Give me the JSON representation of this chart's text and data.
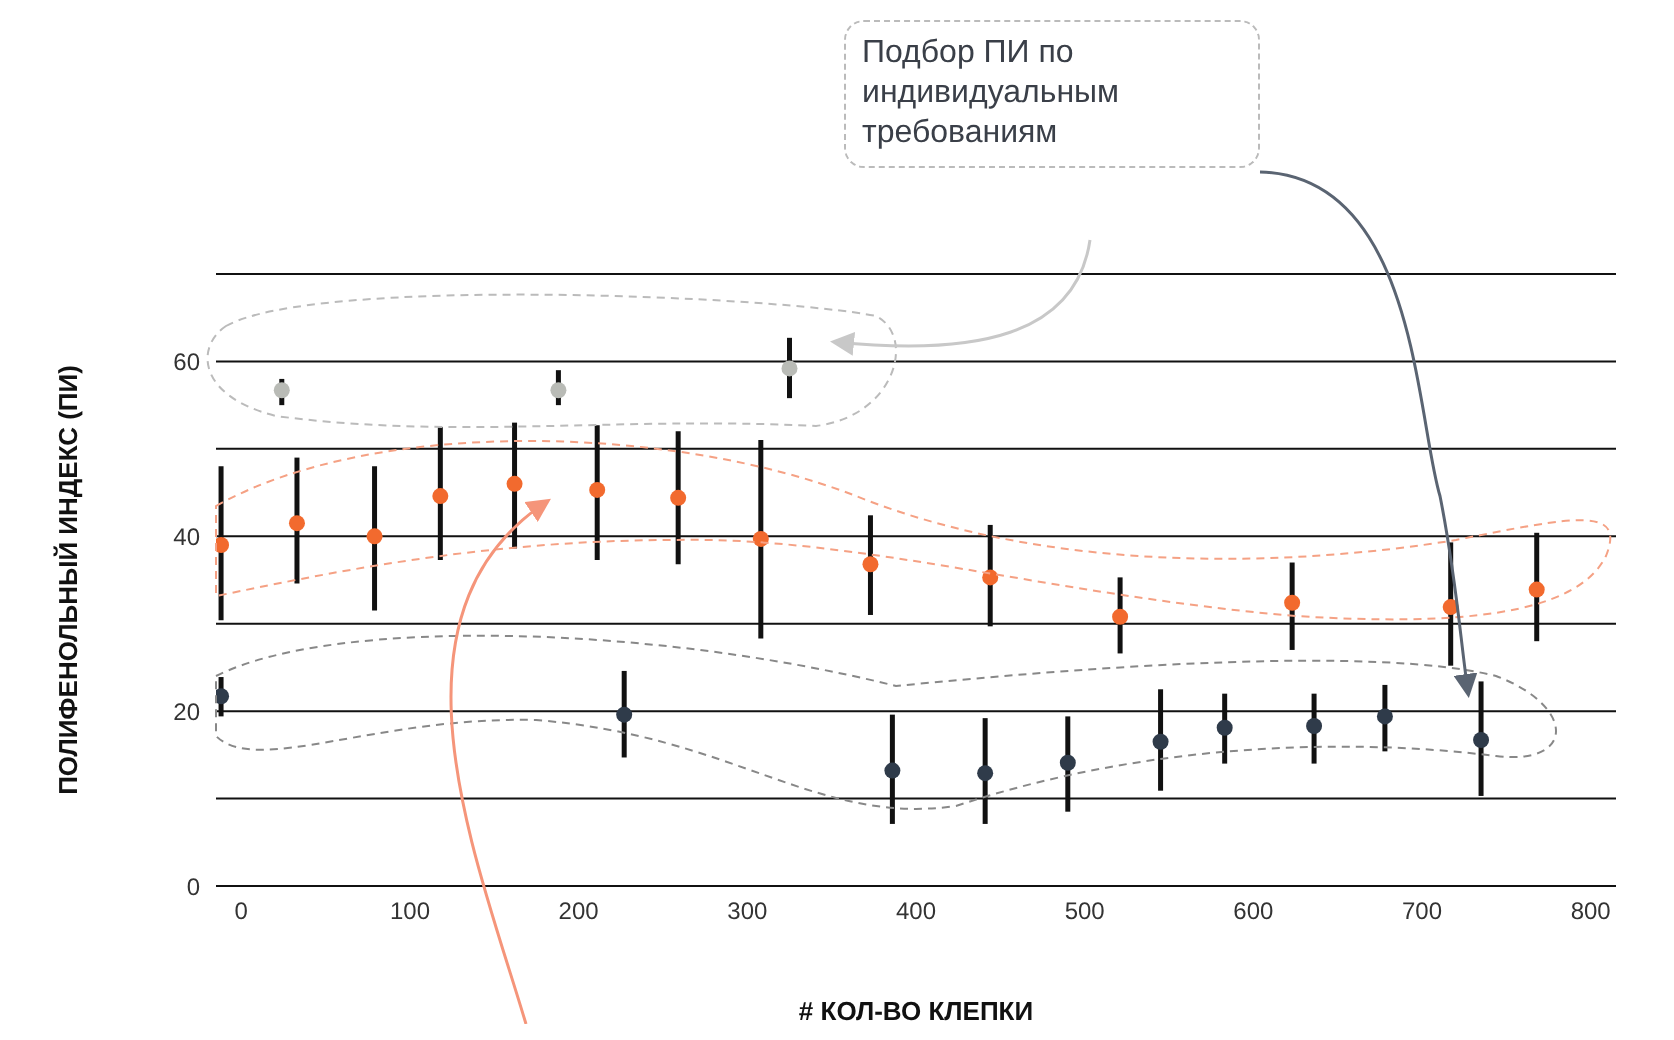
{
  "chart_data": {
    "type": "scatter",
    "xlabel": "# КОЛ-ВО КЛЕПКИ",
    "ylabel": "ПОЛИФЕНОЛЬНЫЙ ИНДЕКС (ПИ)",
    "annotations": [
      "Подбор ПИ по индивидуальным требованиям"
    ],
    "xlim": [
      -15,
      815
    ],
    "xticks": [
      0,
      100,
      200,
      300,
      400,
      500,
      600,
      700,
      800
    ],
    "ylim": [
      0,
      70
    ],
    "yticks": [
      0,
      {
        "value": 10,
        "label": null
      },
      20,
      {
        "value": 30,
        "label": null
      },
      40,
      {
        "value": 50,
        "label": null
      },
      60,
      {
        "value": 70,
        "label": null
      }
    ],
    "grid": "y",
    "marker": "circle",
    "series": [
      {
        "color": "#b9bbb6",
        "x": [
          24,
          188,
          325
        ],
        "values": [
          56.7,
          56.7,
          59.2
        ],
        "errors": [
          [
            55,
            58
          ],
          [
            55,
            59
          ],
          [
            55.8,
            62.7
          ]
        ]
      },
      {
        "color": "#f26a2e",
        "x": [
          -12,
          33,
          79,
          118,
          162,
          211,
          259,
          308,
          373,
          444,
          521,
          623,
          717,
          768
        ],
        "values": [
          39,
          41.5,
          40,
          44.6,
          46,
          45.3,
          44.4,
          39.7,
          36.8,
          35.3,
          30.8,
          32.4,
          31.9,
          33.9
        ],
        "errors": [
          [
            30.4,
            48
          ],
          [
            34.6,
            49
          ],
          [
            31.5,
            48
          ],
          [
            37.3,
            52.5
          ],
          [
            38.6,
            53
          ],
          [
            37.3,
            52.7
          ],
          [
            36.8,
            52
          ],
          [
            28.3,
            51
          ],
          [
            31,
            42.4
          ],
          [
            29.7,
            41.3
          ],
          [
            26.6,
            35.3
          ],
          [
            27,
            37
          ],
          [
            25.2,
            39.3
          ],
          [
            28,
            40.4
          ]
        ]
      },
      {
        "color": "#2f3b4a",
        "x": [
          -12,
          227,
          386,
          441,
          490,
          545,
          583,
          636,
          678,
          735
        ],
        "values": [
          21.7,
          19.6,
          13.2,
          12.9,
          14.1,
          16.5,
          18.1,
          18.3,
          19.4,
          16.7
        ],
        "errors": [
          [
            19.4,
            23.9
          ],
          [
            14.7,
            24.6
          ],
          [
            7.1,
            19.6
          ],
          [
            7.1,
            19.2
          ],
          [
            8.5,
            19.4
          ],
          [
            10.9,
            22.5
          ],
          [
            14,
            22
          ],
          [
            14,
            22
          ],
          [
            15.4,
            23
          ],
          [
            10.3,
            23.4
          ]
        ]
      }
    ]
  }
}
